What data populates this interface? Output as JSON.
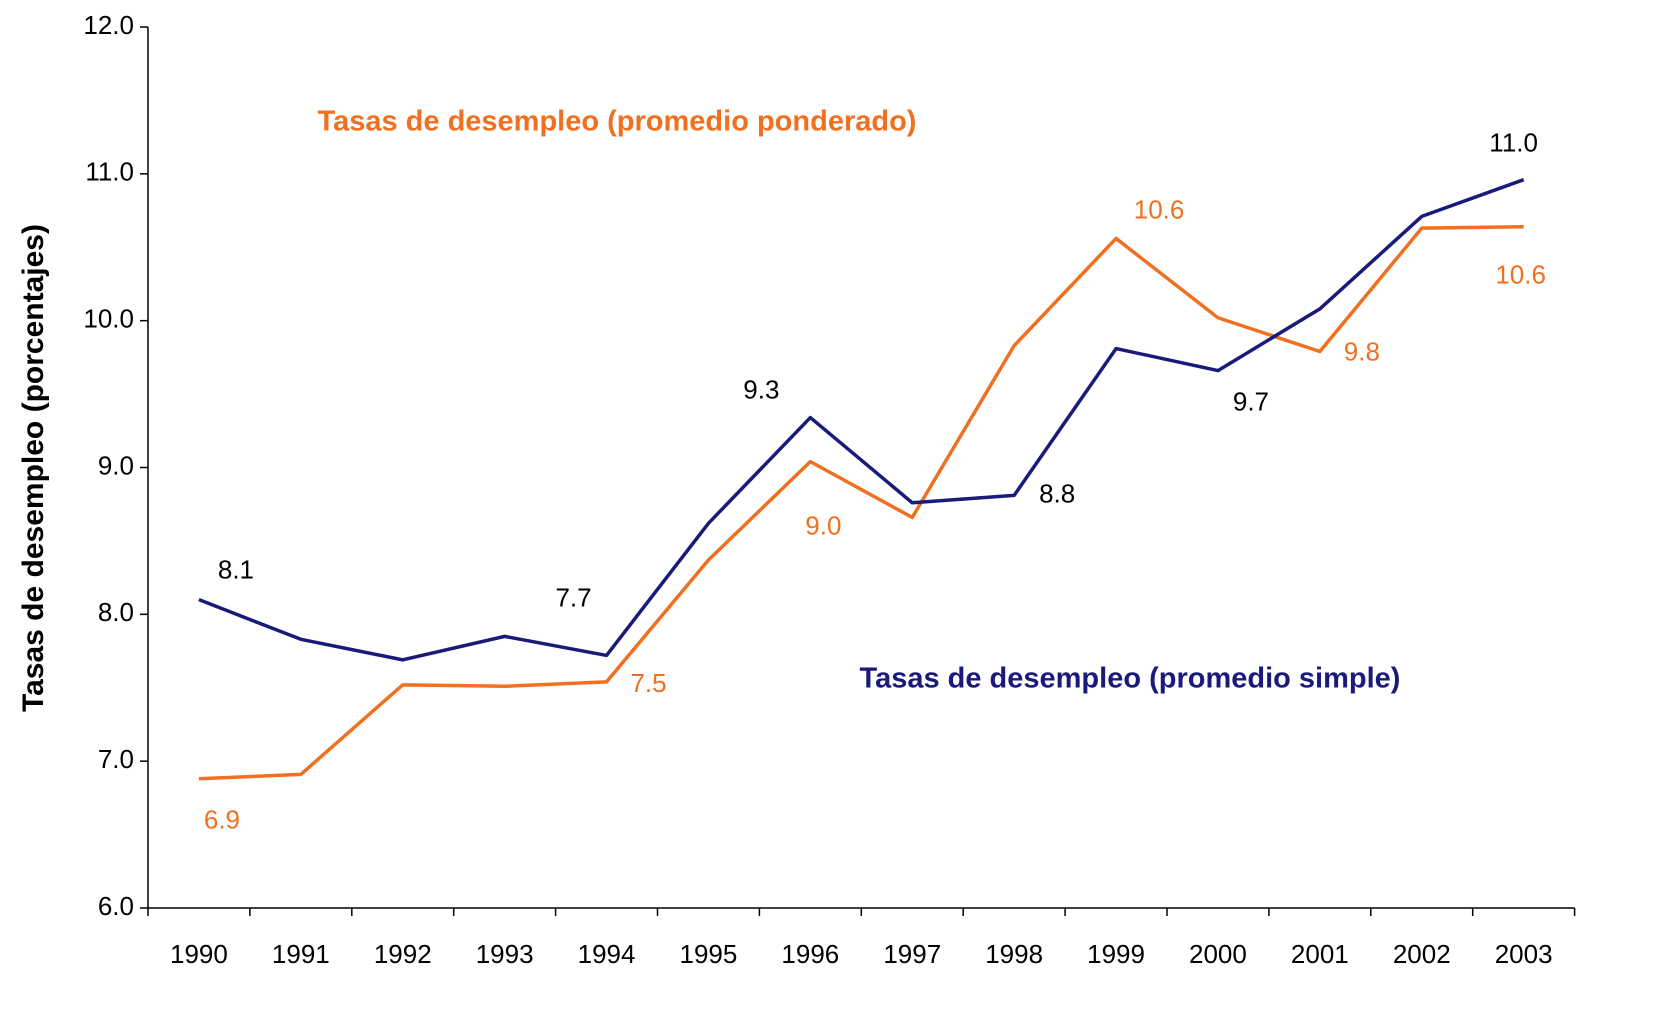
{
  "chart_data": {
    "type": "line",
    "ylabel": "Tasas de desempleo (porcentajes)",
    "categories": [
      "1990",
      "1991",
      "1992",
      "1993",
      "1994",
      "1995",
      "1996",
      "1997",
      "1998",
      "1999",
      "2000",
      "2001",
      "2002",
      "2003"
    ],
    "series": [
      {
        "name": "Tasas de desempleo (promedio ponderado)",
        "color": "#f07020",
        "values": [
          6.88,
          6.91,
          7.52,
          7.51,
          7.54,
          8.37,
          9.04,
          8.66,
          9.83,
          10.56,
          10.02,
          9.79,
          10.63,
          10.64
        ],
        "value_labels": [
          "6.9",
          null,
          null,
          null,
          "7.5",
          null,
          "9.0",
          null,
          null,
          "10.6",
          null,
          "9.8",
          null,
          "10.6"
        ]
      },
      {
        "name": "Tasas de desempleo (promedio simple)",
        "color": "#1a1a7a",
        "values": [
          8.1,
          7.83,
          7.69,
          7.85,
          7.72,
          8.62,
          9.34,
          8.76,
          8.81,
          9.81,
          9.66,
          10.08,
          10.71,
          10.96
        ],
        "value_labels": [
          "8.1",
          null,
          null,
          null,
          "7.7",
          null,
          "9.3",
          null,
          "8.8",
          null,
          "9.7",
          null,
          null,
          "11.0"
        ]
      }
    ],
    "ylim": [
      6,
      12
    ],
    "yticks": [
      {
        "value": 6,
        "label": "6.0"
      },
      {
        "value": 7,
        "label": "7.0"
      },
      {
        "value": 8,
        "label": "8.0"
      },
      {
        "value": 9,
        "label": "9.0"
      },
      {
        "value": 10,
        "label": "10.0"
      },
      {
        "value": 11,
        "label": "11.0"
      },
      {
        "value": 12,
        "label": "12.0"
      }
    ],
    "grid": false
  }
}
